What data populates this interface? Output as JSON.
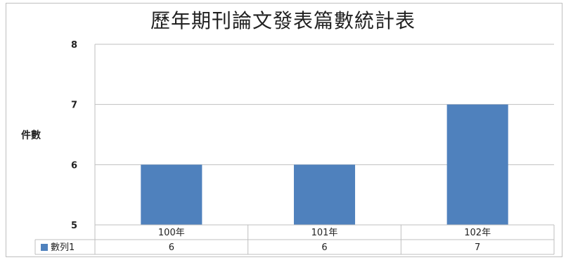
{
  "chart_data": {
    "type": "bar",
    "title": "歷年期刊論文發表篇數統計表",
    "ylabel": "件數",
    "xlabel": "",
    "categories": [
      "100年",
      "101年",
      "102年"
    ],
    "series": [
      {
        "name": "數列1",
        "values": [
          6,
          6,
          7
        ],
        "color": "#4f81bd"
      }
    ],
    "ylim": [
      5,
      8
    ],
    "yticks": [
      5,
      6,
      7,
      8
    ],
    "grid": true,
    "legend": "data-table-left",
    "data_table": true
  }
}
